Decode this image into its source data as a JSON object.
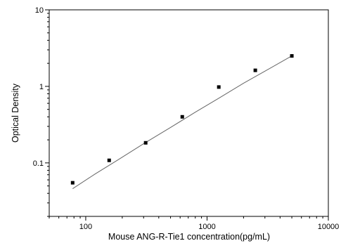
{
  "chart_data": {
    "type": "scatter",
    "title": "",
    "xlabel": "Mouse ANG-R-Tie1 concentration(pg/mL)",
    "ylabel": "Optical Density",
    "x_scale": "log",
    "y_scale": "log",
    "xlim": [
      50,
      10000
    ],
    "ylim": [
      0.02,
      10
    ],
    "x_ticks": [
      100,
      1000,
      10000
    ],
    "x_tick_labels": [
      "100",
      "1000",
      "10000"
    ],
    "y_ticks": [
      0.1,
      1,
      10
    ],
    "y_tick_labels": [
      "0.1",
      "1",
      "10"
    ],
    "grid": false,
    "legend": "none",
    "series": [
      {
        "type": "points",
        "marker": "square",
        "color": "#000000",
        "x": [
          78,
          156,
          312,
          625,
          1250,
          2500,
          5000
        ],
        "y": [
          0.055,
          0.108,
          0.183,
          0.4,
          0.98,
          1.62,
          2.5
        ]
      },
      {
        "type": "fitted-curve",
        "color": "#666666",
        "x": [
          78,
          120,
          180,
          300,
          500,
          800,
          1250,
          2000,
          3000,
          5000
        ],
        "y": [
          0.046,
          0.072,
          0.107,
          0.178,
          0.29,
          0.46,
          0.7,
          1.1,
          1.58,
          2.5
        ]
      }
    ]
  }
}
